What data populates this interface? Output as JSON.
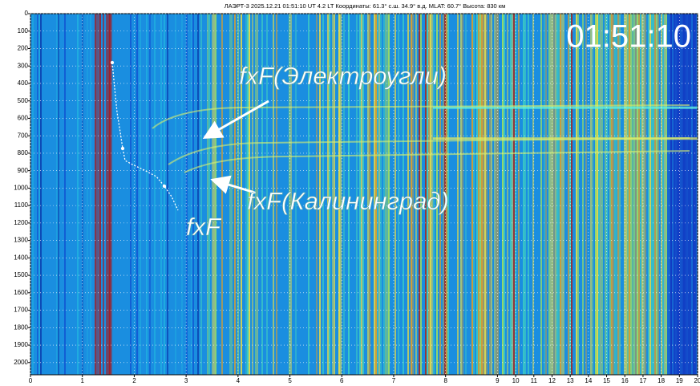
{
  "chart_data": {
    "type": "ionogram",
    "header": "ЛАЭРТ-3    2025.12.21 01:51:10 UT     4.2 LT    Координаты:  61.3° с.ш.   34.9° в.д.     MLAT:  60.7°     Высота:  830 км",
    "time_label": "01:51:10",
    "annotations": [
      "fxF(Электроугли)",
      "fxF(Калининград)",
      "fxF"
    ],
    "xlim": [
      0,
      20
    ],
    "xticks": [
      0,
      1,
      2,
      3,
      4,
      5,
      6,
      7,
      8,
      9,
      10,
      11,
      12,
      13,
      14,
      15,
      16,
      17,
      18,
      19,
      20
    ],
    "ylim": [
      0,
      2070
    ],
    "yticks": [
      0,
      100,
      200,
      300,
      400,
      500,
      600,
      700,
      800,
      900,
      1000,
      1100,
      1200,
      1300,
      1400,
      1500,
      1600,
      1700,
      1800,
      1900,
      2000
    ],
    "grid": true
  }
}
